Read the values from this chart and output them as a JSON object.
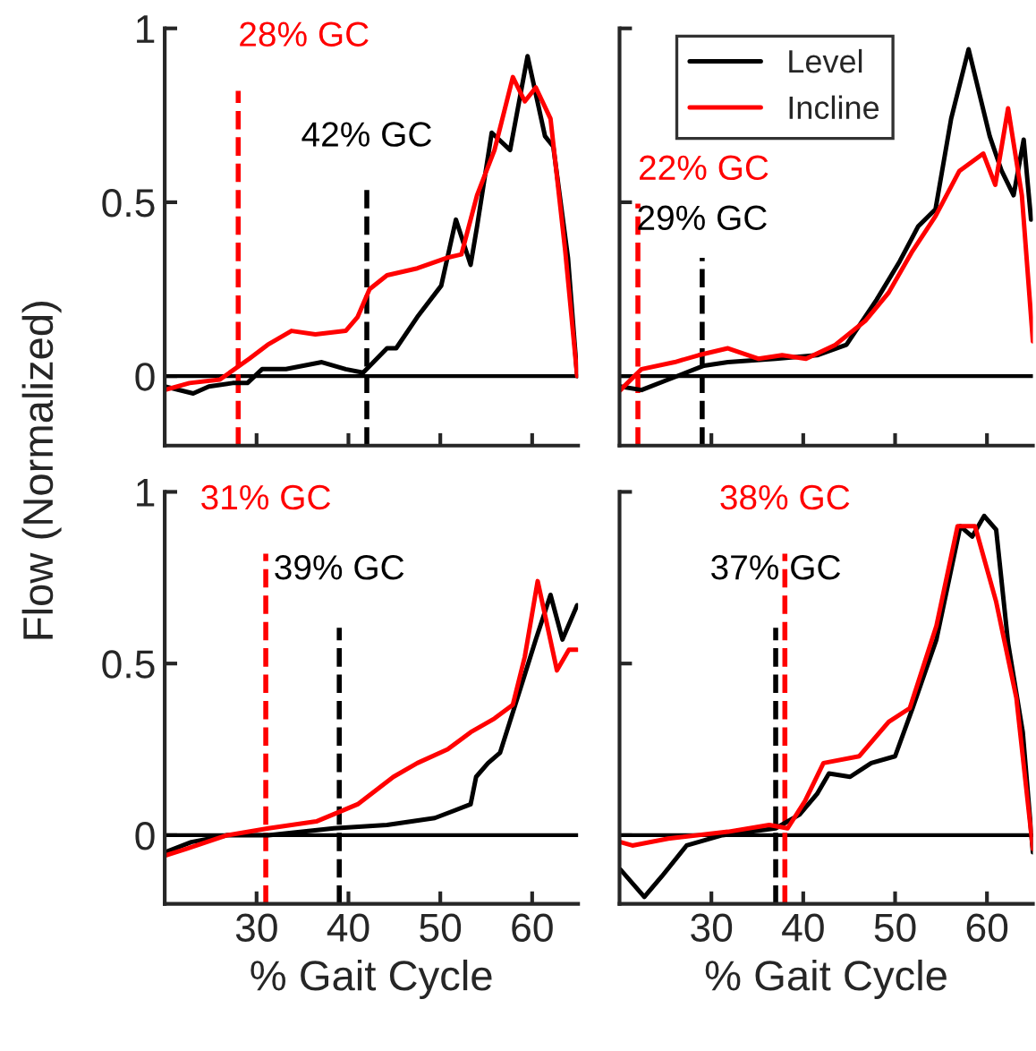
{
  "chart_data": [
    {
      "type": "line",
      "ylabel": "Flow (Normalized)",
      "xlim": [
        20,
        65
      ],
      "ylim": [
        -0.2,
        1
      ],
      "xticks": [
        30,
        40,
        50,
        60
      ],
      "yticks": [
        0,
        0.5,
        1
      ],
      "tick_labels": "y",
      "grid": false,
      "legend": false,
      "line_style": "solid",
      "marker": "none",
      "series": [
        {
          "color": "#000000",
          "x": [
            20,
            23.1,
            24.8,
            27.4,
            29.0,
            30.6,
            33.2,
            37.1,
            39.7,
            41.6,
            44.2,
            45.2,
            47.5,
            50.1,
            51.7,
            53.3,
            54.0,
            55.6,
            57.6,
            59.5,
            61.4,
            62.3,
            63.9,
            64.9
          ],
          "values": [
            -0.03,
            -0.05,
            -0.03,
            -0.02,
            -0.02,
            0.02,
            0.02,
            0.04,
            0.02,
            0.01,
            0.08,
            0.08,
            0.17,
            0.26,
            0.45,
            0.32,
            0.43,
            0.7,
            0.65,
            0.92,
            0.69,
            0.66,
            0.34,
            0
          ]
        },
        {
          "color": "#ff0000",
          "x": [
            20,
            22.7,
            26.0,
            29.2,
            31.2,
            33.8,
            36.4,
            39.7,
            41.0,
            42.3,
            44.2,
            47.5,
            50.7,
            52.3,
            54.0,
            55.9,
            57.9,
            59.2,
            60.4,
            62.0,
            63.6,
            64.9
          ],
          "values": [
            -0.04,
            -0.02,
            -0.01,
            0.05,
            0.09,
            0.13,
            0.12,
            0.13,
            0.17,
            0.25,
            0.29,
            0.31,
            0.34,
            0.35,
            0.52,
            0.65,
            0.86,
            0.79,
            0.83,
            0.74,
            0.36,
            0
          ]
        }
      ],
      "ref_lines": [
        {
          "axis": "y",
          "value": 0,
          "color": "#000000",
          "line_style": "solid"
        },
        {
          "axis": "x",
          "value": 28,
          "label": "28% GC",
          "color": "#ff0000",
          "line_style": "dashed"
        },
        {
          "axis": "x",
          "value": 42,
          "label": "42% GC",
          "color": "#000000",
          "line_style": "dashed"
        }
      ]
    },
    {
      "type": "line",
      "xlim": [
        20,
        65
      ],
      "ylim": [
        -0.2,
        1
      ],
      "xticks": [
        30,
        40,
        50,
        60
      ],
      "yticks": [
        0,
        0.5,
        1
      ],
      "tick_labels": false,
      "grid": false,
      "legend": "top",
      "line_style": "solid",
      "marker": "none",
      "series": [
        {
          "name": "Level",
          "color": "#000000",
          "x": [
            20.1,
            22.4,
            25.3,
            29.2,
            31.8,
            37.0,
            41.5,
            44.7,
            48.0,
            50.5,
            52.5,
            54.4,
            56.1,
            58.0,
            60.3,
            61.6,
            62.9,
            64.0,
            64.8
          ],
          "values": [
            -0.03,
            -0.04,
            -0.01,
            0.03,
            0.04,
            0.05,
            0.06,
            0.09,
            0.22,
            0.33,
            0.43,
            0.48,
            0.74,
            0.94,
            0.69,
            0.59,
            0.52,
            0.68,
            0.45
          ]
        },
        {
          "name": "Incline",
          "color": "#ff0000",
          "x": [
            20.1,
            22.4,
            26.0,
            28.6,
            31.8,
            35.1,
            37.7,
            40.3,
            43.5,
            46.8,
            49.3,
            51.9,
            54.4,
            57.0,
            59.6,
            60.9,
            62.3,
            63.8,
            65.0
          ],
          "values": [
            -0.04,
            0.02,
            0.04,
            0.06,
            0.08,
            0.05,
            0.06,
            0.05,
            0.09,
            0.16,
            0.24,
            0.36,
            0.46,
            0.59,
            0.64,
            0.55,
            0.77,
            0.52,
            0.1
          ]
        }
      ],
      "ref_lines": [
        {
          "axis": "y",
          "value": 0,
          "color": "#000000",
          "line_style": "solid"
        },
        {
          "axis": "x",
          "value": 22,
          "label": "22% GC",
          "color": "#ff0000",
          "line_style": "dashed"
        },
        {
          "axis": "x",
          "value": 29,
          "label": "29% GC",
          "color": "#000000",
          "line_style": "dashed"
        }
      ]
    },
    {
      "type": "line",
      "xlabel": "% Gait Cycle",
      "xlim": [
        20,
        65
      ],
      "ylim": [
        -0.2,
        1
      ],
      "xticks": [
        30,
        40,
        50,
        60
      ],
      "yticks": [
        0,
        0.5,
        1
      ],
      "grid": false,
      "legend": false,
      "line_style": "solid",
      "marker": "none",
      "series": [
        {
          "color": "#000000",
          "x": [
            20,
            22.9,
            26.8,
            31.3,
            38.4,
            44.2,
            49.4,
            53.3,
            53.9,
            55.2,
            56.5,
            58.4,
            60.4,
            62.0,
            63.3,
            64.9
          ],
          "values": [
            -0.05,
            -0.02,
            0,
            0,
            0.02,
            0.03,
            0.05,
            0.09,
            0.17,
            0.21,
            0.24,
            0.4,
            0.57,
            0.7,
            0.57,
            0.67
          ]
        },
        {
          "color": "#ff0000",
          "x": [
            20,
            22.3,
            26.8,
            31.3,
            36.5,
            41.0,
            44.9,
            47.5,
            50.8,
            53.3,
            55.9,
            57.9,
            59.2,
            60.6,
            62.7,
            64.0,
            64.9
          ],
          "values": [
            -0.06,
            -0.04,
            0,
            0.02,
            0.04,
            0.09,
            0.17,
            0.21,
            0.25,
            0.3,
            0.34,
            0.38,
            0.52,
            0.74,
            0.48,
            0.54,
            0.54
          ]
        }
      ],
      "ref_lines": [
        {
          "axis": "y",
          "value": 0,
          "color": "#000000",
          "line_style": "solid"
        },
        {
          "axis": "x",
          "value": 31,
          "label": "31% GC",
          "color": "#ff0000",
          "line_style": "dashed"
        },
        {
          "axis": "x",
          "value": 39,
          "label": "39% GC",
          "color": "#000000",
          "line_style": "dashed"
        }
      ]
    },
    {
      "type": "line",
      "xlabel": "% Gait Cycle",
      "xlim": [
        20,
        65
      ],
      "ylim": [
        -0.2,
        1
      ],
      "xticks": [
        30,
        40,
        50,
        60
      ],
      "yticks": [
        0,
        0.5,
        1
      ],
      "tick_labels": "x",
      "grid": false,
      "legend": false,
      "line_style": "solid",
      "marker": "none",
      "series": [
        {
          "color": "#000000",
          "x": [
            20.1,
            22.7,
            24.6,
            27.3,
            31.2,
            37.0,
            39.6,
            41.5,
            42.8,
            45.1,
            47.4,
            50.0,
            51.9,
            54.5,
            57.1,
            58.4,
            59.7,
            61.0,
            62.3,
            63.9,
            65.0
          ],
          "values": [
            -0.1,
            -0.18,
            -0.12,
            -0.03,
            0,
            0.02,
            0.06,
            0.12,
            0.18,
            0.17,
            0.21,
            0.23,
            0.37,
            0.57,
            0.9,
            0.87,
            0.93,
            0.89,
            0.56,
            0.3,
            -0.05
          ]
        },
        {
          "color": "#ff0000",
          "x": [
            20.1,
            21.4,
            25.3,
            31.8,
            36.3,
            38.3,
            40.2,
            42.2,
            46.1,
            49.3,
            51.6,
            54.5,
            56.8,
            58.7,
            61.0,
            63.2,
            65.0
          ],
          "values": [
            -0.02,
            -0.03,
            -0.01,
            0.01,
            0.03,
            0.02,
            0.1,
            0.21,
            0.23,
            0.33,
            0.37,
            0.61,
            0.9,
            0.9,
            0.68,
            0.4,
            -0.04
          ]
        }
      ],
      "ref_lines": [
        {
          "axis": "y",
          "value": 0,
          "color": "#000000",
          "line_style": "solid"
        },
        {
          "axis": "x",
          "value": 37,
          "label": "37% GC",
          "color": "#000000",
          "line_style": "dashed"
        },
        {
          "axis": "x",
          "value": 38,
          "label": "38% GC",
          "color": "#ff0000",
          "line_style": "dashed"
        }
      ]
    }
  ]
}
